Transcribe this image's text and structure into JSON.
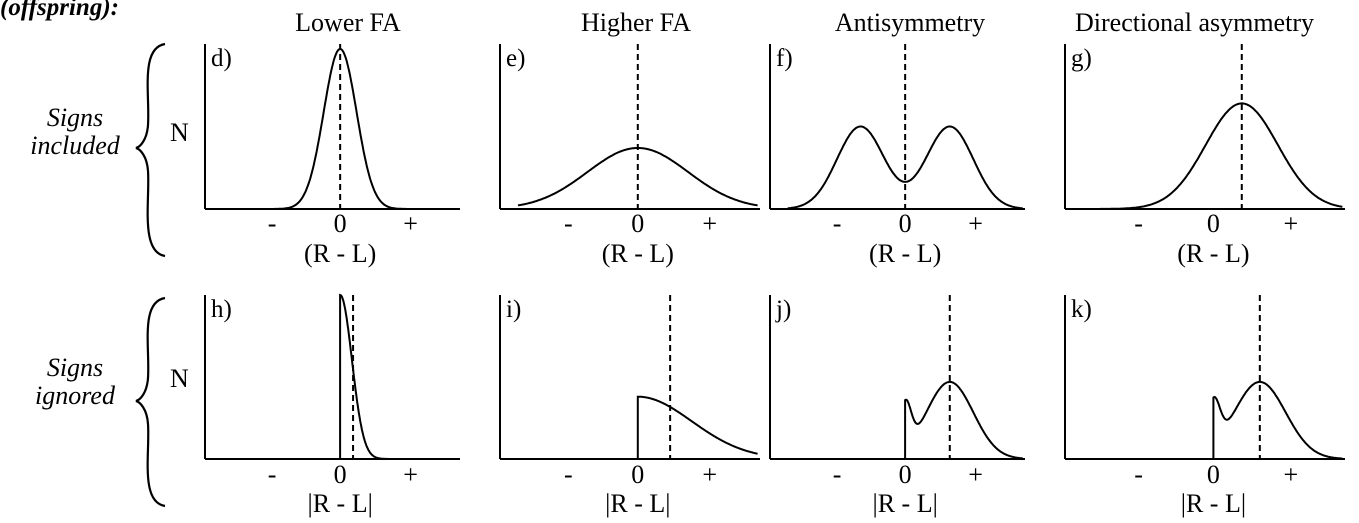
{
  "header_label": "(offspring):",
  "column_titles": [
    "Lower FA",
    "Higher FA",
    "Antisymmetry",
    "Directional asymmetry"
  ],
  "rows": [
    {
      "row_label_line1": "Signs",
      "row_label_line2": "included",
      "y_label": "N",
      "x_axis_label": "(R - L)",
      "panels": [
        {
          "letter": "d)",
          "tick_minus": "-",
          "tick_zero": "0",
          "tick_plus": "+",
          "curve": "narrow-gaussian-centered"
        },
        {
          "letter": "e)",
          "tick_minus": "-",
          "tick_zero": "0",
          "tick_plus": "+",
          "curve": "wide-gaussian-centered"
        },
        {
          "letter": "f)",
          "tick_minus": "-",
          "tick_zero": "0",
          "tick_plus": "+",
          "curve": "bimodal-symmetric"
        },
        {
          "letter": "g)",
          "tick_minus": "-",
          "tick_zero": "0",
          "tick_plus": "+",
          "curve": "gaussian-shifted-right"
        }
      ]
    },
    {
      "row_label_line1": "Signs",
      "row_label_line2": "ignored",
      "y_label": "N",
      "x_axis_label": "|R - L|",
      "panels": [
        {
          "letter": "h)",
          "tick_minus": "-",
          "tick_zero": "0",
          "tick_plus": "+",
          "curve": "folded-narrow"
        },
        {
          "letter": "i)",
          "tick_minus": "-",
          "tick_zero": "0",
          "tick_plus": "+",
          "curve": "folded-wide"
        },
        {
          "letter": "j)",
          "tick_minus": "-",
          "tick_zero": "0",
          "tick_plus": "+",
          "curve": "folded-bimodal"
        },
        {
          "letter": "k)",
          "tick_minus": "-",
          "tick_zero": "0",
          "tick_plus": "+",
          "curve": "folded-shifted"
        }
      ]
    }
  ]
}
